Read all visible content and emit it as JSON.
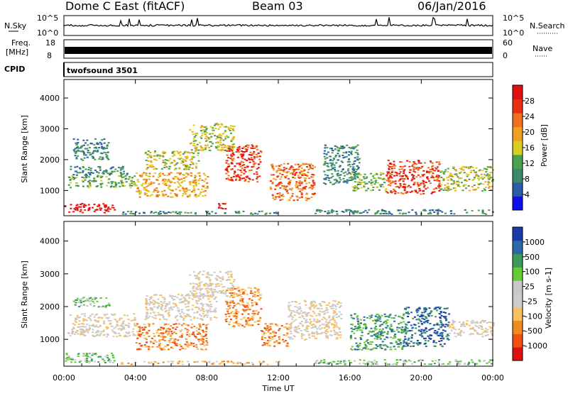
{
  "header": {
    "radar": "Dome C East (fitACF)",
    "beam": "Beam 03",
    "date": "06/Jan/2016"
  },
  "sky_panel": {
    "left_label": "N.Sky",
    "right_label": "N.Search",
    "left_ticks": [
      "10^5",
      "10^0"
    ],
    "right_ticks": [
      "10^5",
      "10^0"
    ]
  },
  "freq_panel": {
    "left_label_line1": "Freq.",
    "left_label_line2": "[MHz]",
    "right_label": "Nave",
    "left_ticks": [
      "8",
      "18"
    ],
    "right_ticks": [
      "60",
      "0"
    ]
  },
  "cpid": {
    "label": "CPID",
    "value": "twofsound 3501"
  },
  "time_axis": {
    "label": "Time UT",
    "ticks": [
      "00:00",
      "04:00",
      "08:00",
      "12:00",
      "16:00",
      "20:00",
      "00:00"
    ]
  },
  "colors": {
    "power": [
      "#1010ee",
      "#2a5ca8",
      "#3d8a6a",
      "#4aa34a",
      "#d8d020",
      "#f0a020",
      "#f07020",
      "#e83010",
      "#e01010"
    ],
    "velocity": [
      "#e01010",
      "#f05010",
      "#f08a20",
      "#f8c060",
      "#cccccc",
      "#c8c8c8",
      "#66cc33",
      "#3d9a5a",
      "#2a6aa8",
      "#1a3aaa"
    ]
  },
  "chart_data": [
    {
      "type": "heatmap",
      "title": "",
      "xlabel": "Time UT",
      "ylabel": "Slant Range [km]",
      "x_range_hours": [
        0,
        24
      ],
      "ylim": [
        180,
        4600
      ],
      "y_ticks": [
        1000,
        2000,
        3000,
        4000
      ],
      "colorbar": {
        "label": "Power [dB]",
        "ticks": [
          4,
          8,
          12,
          16,
          20,
          24,
          28
        ]
      },
      "regions": [
        {
          "t": [
            0.0,
            2.8
          ],
          "r": [
            300,
            600
          ],
          "level": 8
        },
        {
          "t": [
            0.2,
            4.0
          ],
          "r": [
            1100,
            1500
          ],
          "level": 3
        },
        {
          "t": [
            0.3,
            3.5
          ],
          "r": [
            1500,
            1800
          ],
          "level": 2
        },
        {
          "t": [
            0.5,
            2.5
          ],
          "r": [
            2000,
            2700
          ],
          "level": 2
        },
        {
          "t": [
            4.0,
            8.0
          ],
          "r": [
            800,
            1600
          ],
          "level": 5
        },
        {
          "t": [
            4.5,
            7.5
          ],
          "r": [
            1700,
            2300
          ],
          "level": 4
        },
        {
          "t": [
            7.0,
            9.5
          ],
          "r": [
            2300,
            3200
          ],
          "level": 4
        },
        {
          "t": [
            9.0,
            11.0
          ],
          "r": [
            1300,
            2500
          ],
          "level": 7
        },
        {
          "t": [
            11.5,
            14.0
          ],
          "r": [
            700,
            1900
          ],
          "level": 6
        },
        {
          "t": [
            8.5,
            9.0
          ],
          "r": [
            300,
            600
          ],
          "level": 8
        },
        {
          "t": [
            14.5,
            16.5
          ],
          "r": [
            1200,
            2500
          ],
          "level": 2
        },
        {
          "t": [
            16.0,
            18.0
          ],
          "r": [
            1000,
            1600
          ],
          "level": 3
        },
        {
          "t": [
            18.0,
            21.0
          ],
          "r": [
            900,
            2000
          ],
          "level": 7
        },
        {
          "t": [
            21.0,
            24.0
          ],
          "r": [
            1000,
            1800
          ],
          "level": 4
        },
        {
          "t": [
            3.0,
            12.0
          ],
          "r": [
            250,
            350
          ],
          "level": 2
        },
        {
          "t": [
            14.0,
            24.0
          ],
          "r": [
            250,
            400
          ],
          "level": 2
        }
      ]
    },
    {
      "type": "heatmap",
      "title": "",
      "xlabel": "Time UT",
      "ylabel": "Slant Range [km]",
      "x_range_hours": [
        0,
        24
      ],
      "ylim": [
        180,
        4600
      ],
      "y_ticks": [
        1000,
        2000,
        3000,
        4000
      ],
      "colorbar": {
        "label": "Velocity [m s-1]",
        "ticks": [
          "-1000",
          "-500",
          "-100",
          "-25",
          "25",
          "100",
          "500",
          "1000"
        ]
      },
      "regions": [
        {
          "t": [
            0.0,
            2.8
          ],
          "r": [
            300,
            600
          ],
          "level": 6
        },
        {
          "t": [
            0.2,
            4.0
          ],
          "r": [
            1100,
            1800
          ],
          "level": 4
        },
        {
          "t": [
            0.5,
            2.5
          ],
          "r": [
            2000,
            2300
          ],
          "level": 6
        },
        {
          "t": [
            4.0,
            8.0
          ],
          "r": [
            700,
            1500
          ],
          "level": 2
        },
        {
          "t": [
            4.5,
            8.5
          ],
          "r": [
            1600,
            2400
          ],
          "level": 4
        },
        {
          "t": [
            7.0,
            9.5
          ],
          "r": [
            2300,
            3100
          ],
          "level": 4
        },
        {
          "t": [
            9.0,
            11.0
          ],
          "r": [
            1400,
            2600
          ],
          "level": 2
        },
        {
          "t": [
            11.0,
            12.5
          ],
          "r": [
            800,
            1500
          ],
          "level": 2
        },
        {
          "t": [
            12.5,
            15.5
          ],
          "r": [
            1000,
            2200
          ],
          "level": 4
        },
        {
          "t": [
            16.0,
            19.0
          ],
          "r": [
            700,
            1800
          ],
          "level": 7
        },
        {
          "t": [
            19.0,
            21.5
          ],
          "r": [
            800,
            2000
          ],
          "level": 8
        },
        {
          "t": [
            21.5,
            24.0
          ],
          "r": [
            1100,
            1600
          ],
          "level": 4
        },
        {
          "t": [
            3.0,
            12.0
          ],
          "r": [
            250,
            350
          ],
          "level": 3
        },
        {
          "t": [
            14.0,
            24.0
          ],
          "r": [
            250,
            400
          ],
          "level": 6
        }
      ]
    }
  ]
}
